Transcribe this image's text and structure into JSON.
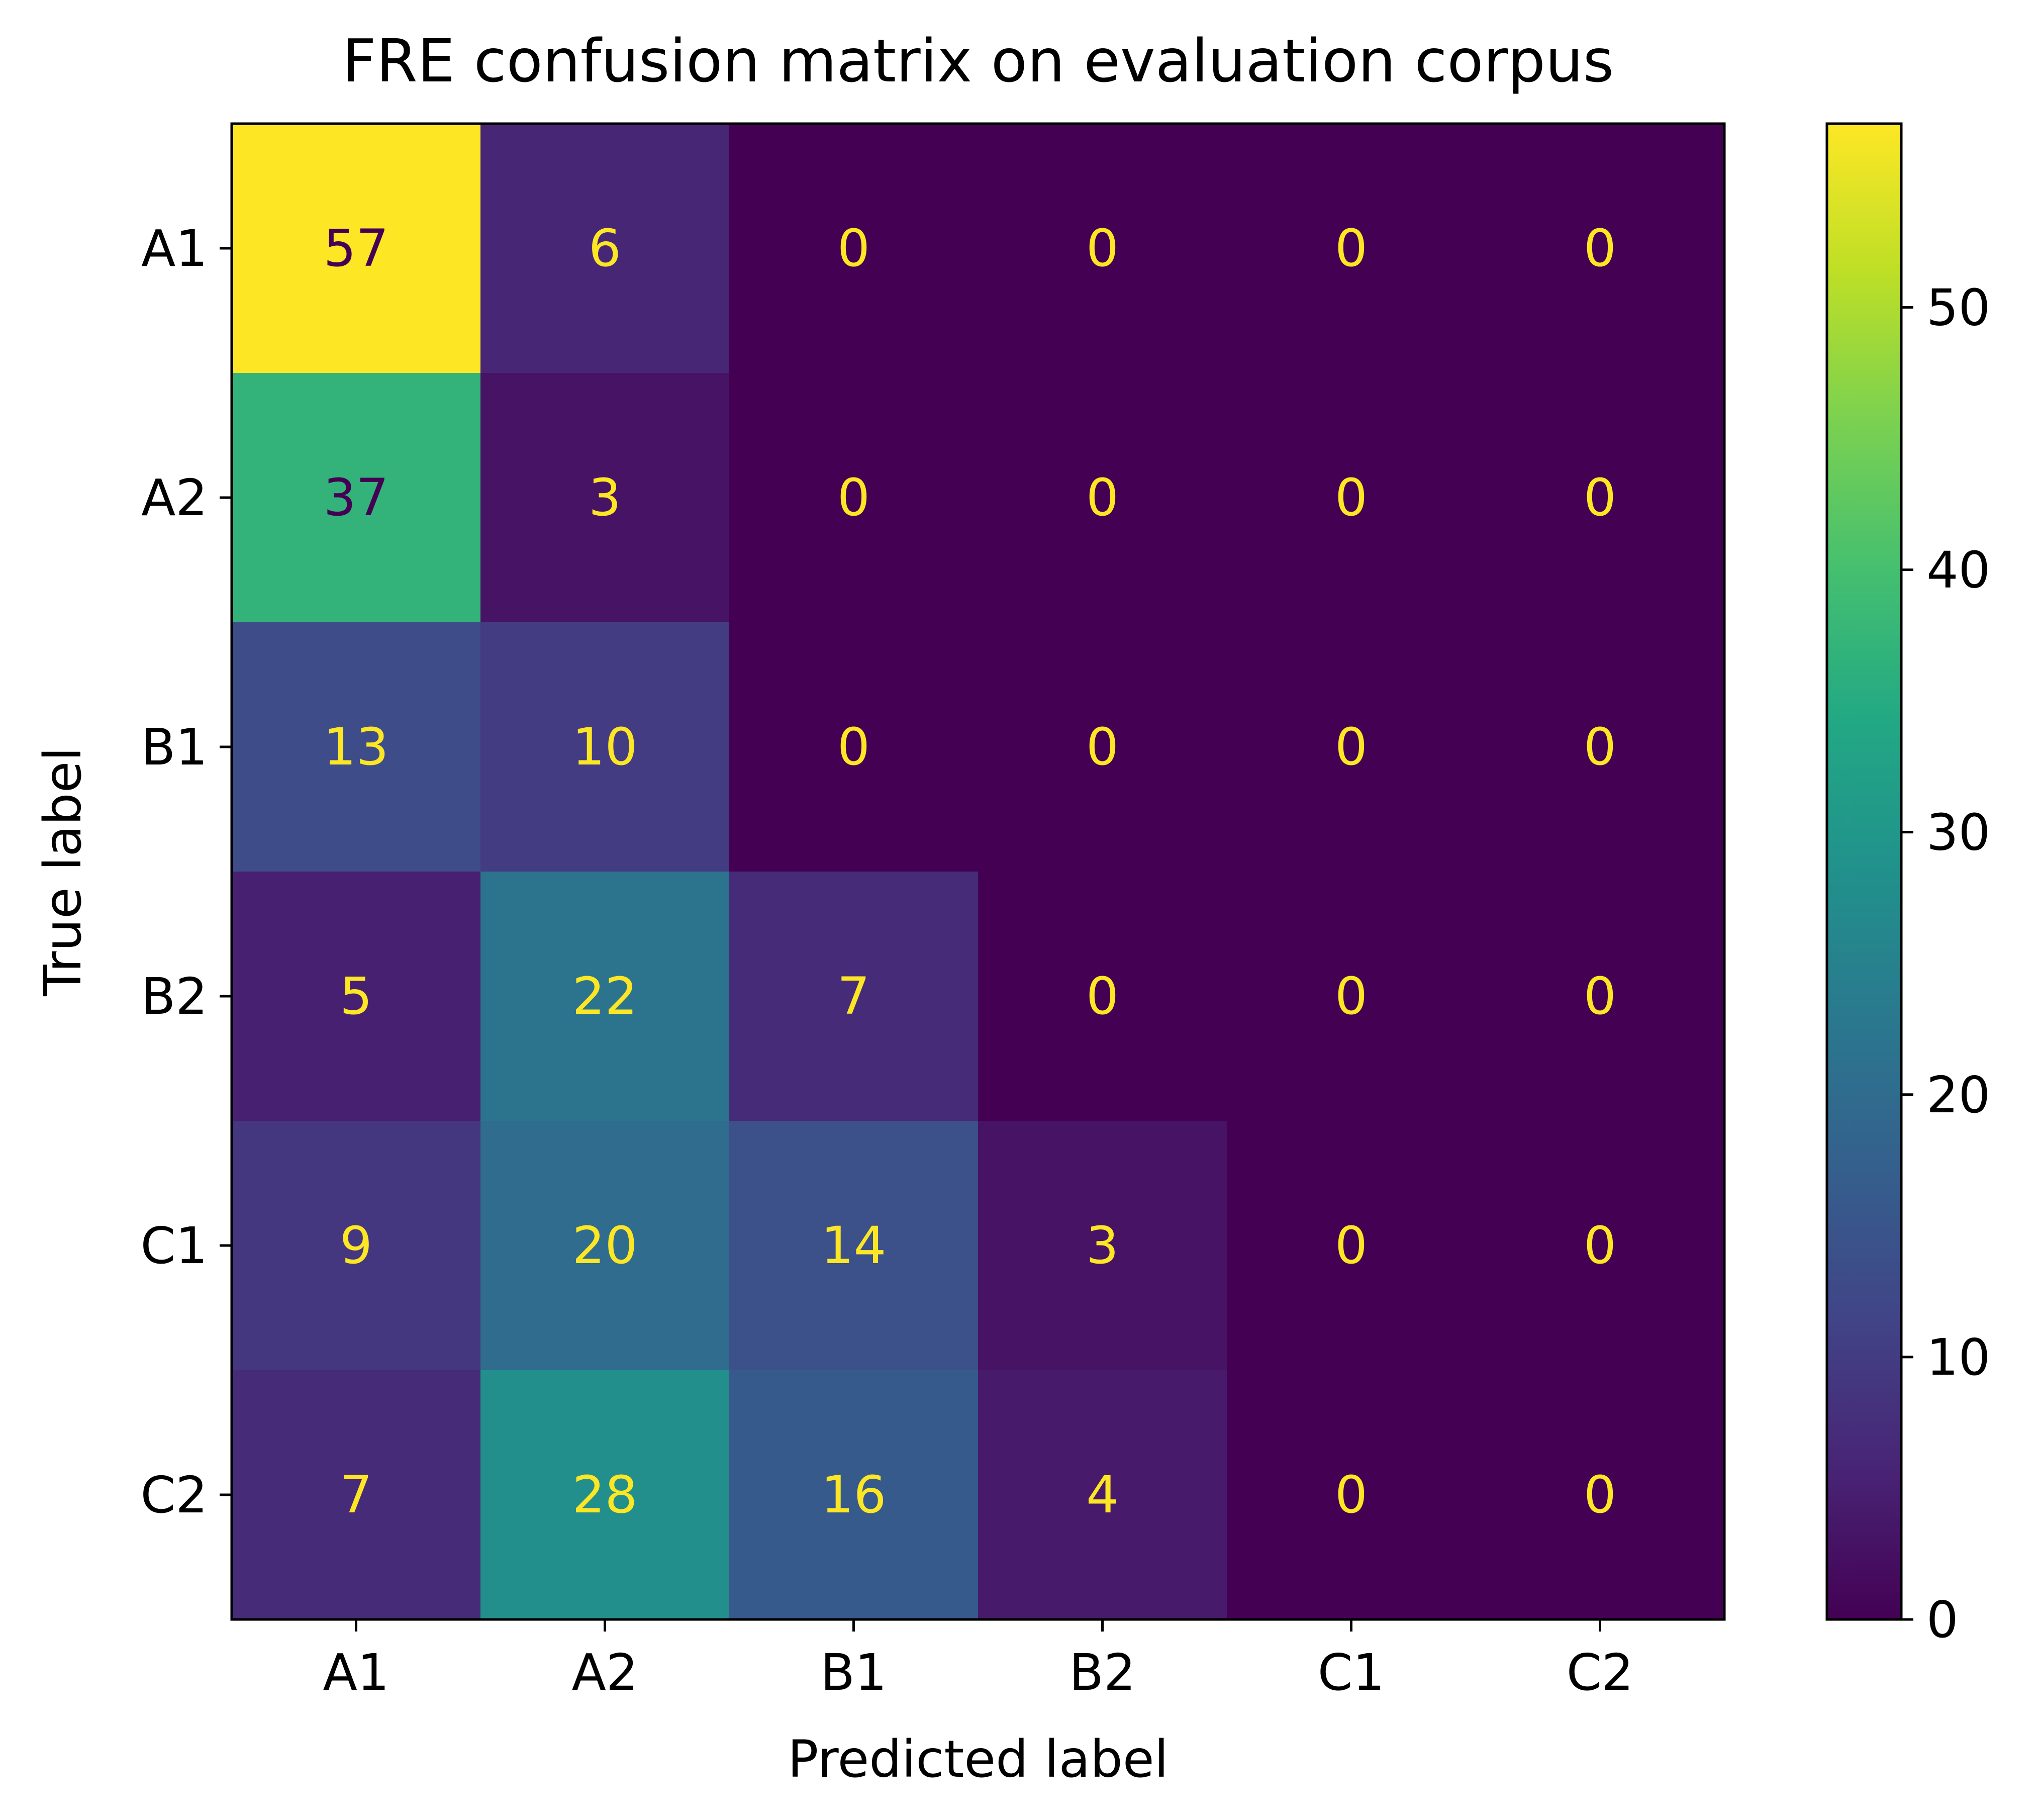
{
  "chart_data": {
    "type": "heatmap",
    "title": "FRE confusion matrix on evaluation corpus",
    "xlabel": "Predicted label",
    "ylabel": "True label",
    "x_categories": [
      "A1",
      "A2",
      "B1",
      "B2",
      "C1",
      "C2"
    ],
    "y_categories": [
      "A1",
      "A2",
      "B1",
      "B2",
      "C1",
      "C2"
    ],
    "matrix": [
      [
        57,
        6,
        0,
        0,
        0,
        0
      ],
      [
        37,
        3,
        0,
        0,
        0,
        0
      ],
      [
        13,
        10,
        0,
        0,
        0,
        0
      ],
      [
        5,
        22,
        7,
        0,
        0,
        0
      ],
      [
        9,
        20,
        14,
        3,
        0,
        0
      ],
      [
        7,
        28,
        16,
        4,
        0,
        0
      ]
    ],
    "colormap": "viridis",
    "color_range": [
      0,
      57
    ],
    "colorbar_ticks": [
      0,
      10,
      20,
      30,
      40,
      50
    ],
    "grid": false
  }
}
